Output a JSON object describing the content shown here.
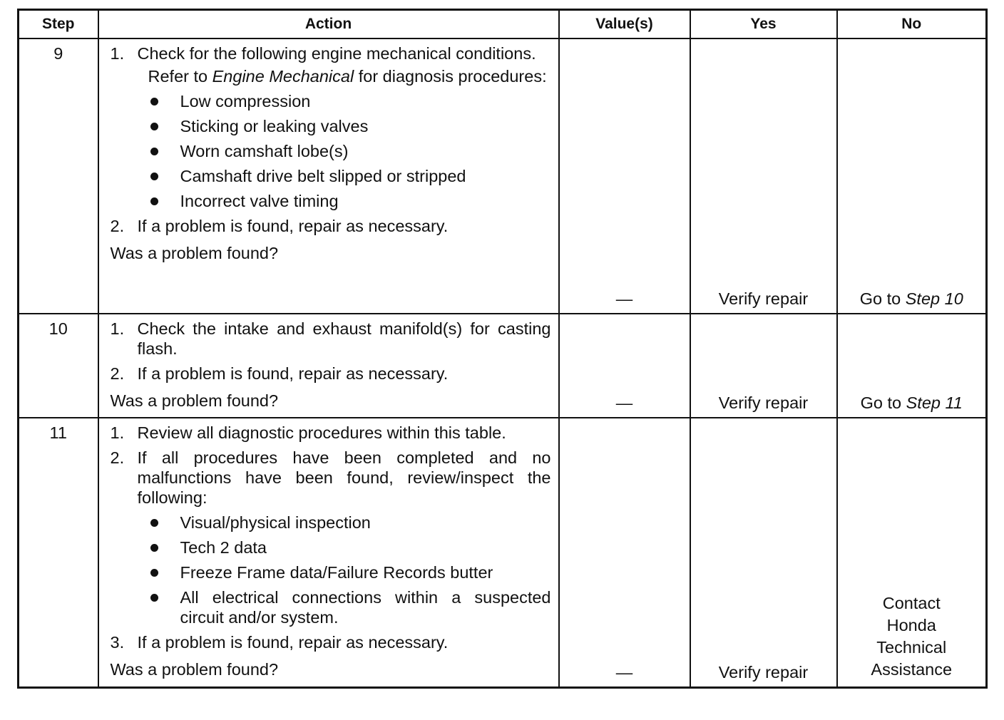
{
  "header": {
    "step": "Step",
    "action": "Action",
    "values": "Value(s)",
    "yes": "Yes",
    "no": "No"
  },
  "rows": [
    {
      "step": "9",
      "items": [
        {
          "n": "1.",
          "text": "Check for the following engine mechanical conditions."
        },
        {
          "pre": "Refer to ",
          "italic": "Engine Mechanical",
          "post": " for diagnosis procedures:"
        },
        {
          "text": "Low compression"
        },
        {
          "text": "Sticking or leaking valves"
        },
        {
          "text": "Worn camshaft lobe(s)"
        },
        {
          "text": "Camshaft drive belt slipped or stripped"
        },
        {
          "text": "Incorrect valve timing"
        },
        {
          "n": "2.",
          "text": "If a problem is found, repair as necessary."
        }
      ],
      "question": "Was a problem found?",
      "value": "—",
      "yes": "Verify repair",
      "no": {
        "prefix": "Go to ",
        "italic": "Step 10"
      }
    },
    {
      "step": "10",
      "items": [
        {
          "n": "1.",
          "text": "Check the intake and exhaust manifold(s) for casting flash."
        },
        {
          "n": "2.",
          "text": "If a problem is found, repair as necessary."
        }
      ],
      "question": "Was a problem found?",
      "value": "—",
      "yes": "Verify repair",
      "no": {
        "prefix": "Go to ",
        "italic": "Step 11"
      }
    },
    {
      "step": "11",
      "items": [
        {
          "n": "1.",
          "text": "Review all diagnostic procedures within this table."
        },
        {
          "n": "2.",
          "text": "If all procedures have been completed and no malfunctions have been found, review/inspect the following:"
        },
        {
          "text": "Visual/physical inspection"
        },
        {
          "text": "Tech 2 data"
        },
        {
          "text": "Freeze Frame data/Failure Records butter"
        },
        {
          "text": "All electrical connections within a suspected circuit and/or system."
        },
        {
          "n": "3.",
          "text": "If a problem is found, repair as necessary."
        }
      ],
      "question": "Was a problem found?",
      "value": "—",
      "yes": "Verify repair",
      "no": {
        "lines": [
          "Contact",
          "Honda",
          "Technical",
          "Assistance"
        ]
      }
    }
  ]
}
